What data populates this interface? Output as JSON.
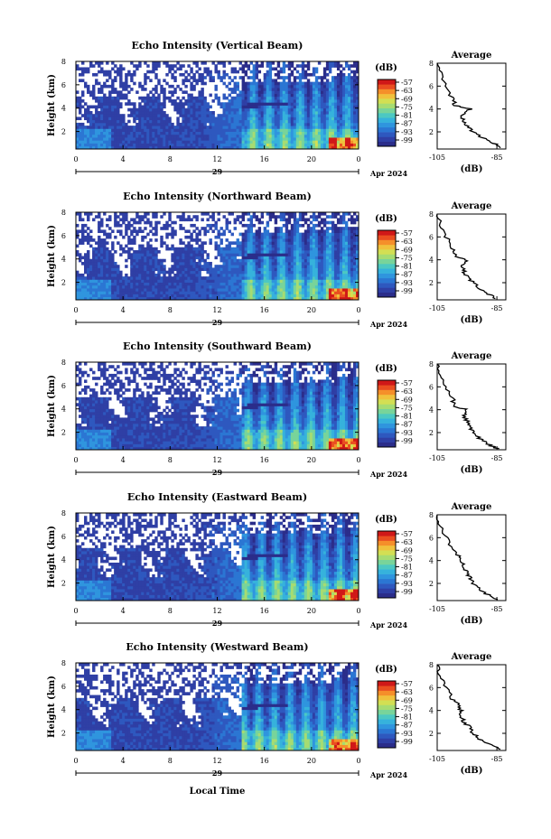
{
  "colors": {
    "map": [
      "#2b2d8a",
      "#2f3fa5",
      "#2e58bf",
      "#2b76d3",
      "#2f95de",
      "#36b2dc",
      "#4cc8c2",
      "#78d49a",
      "#a6dc72",
      "#d3df53",
      "#f0c13c",
      "#f58f2a",
      "#ea4e20",
      "#d01818"
    ],
    "background": "#ffffff",
    "axis": "#000000"
  },
  "colorbar": {
    "unit": "(dB)",
    "labels": [
      "-57",
      "-63",
      "-69",
      "-75",
      "-81",
      "-87",
      "-93",
      "-99"
    ]
  },
  "xaxis": {
    "ticks": [
      "0",
      "4",
      "8",
      "12",
      "16",
      "20",
      "0"
    ],
    "date_label": "29",
    "month_year": "Apr 2024",
    "label": "Local Time"
  },
  "chart_data": [
    {
      "type": "heatmap",
      "title": "Echo Intensity (Vertical Beam)",
      "ylabel": "Height (km)",
      "yticks": [
        "2",
        "4",
        "6",
        "8"
      ],
      "ylim": [
        0.5,
        8
      ],
      "xlim": [
        0,
        24
      ],
      "avg": {
        "title": "Average",
        "xlabel": "(dB)",
        "xticks": [
          "-105",
          "-85"
        ],
        "xlim": [
          -105,
          -82
        ],
        "yticks": [
          "2",
          "4",
          "6",
          "8"
        ],
        "profile": [
          [
            0.6,
            -83
          ],
          [
            1.0,
            -86
          ],
          [
            1.5,
            -90
          ],
          [
            2.0,
            -93
          ],
          [
            2.5,
            -95
          ],
          [
            3.0,
            -96
          ],
          [
            3.5,
            -97
          ],
          [
            4.0,
            -94
          ],
          [
            4.3,
            -99
          ],
          [
            5.0,
            -100
          ],
          [
            6.0,
            -102
          ],
          [
            7.0,
            -104
          ],
          [
            8.0,
            -105
          ]
        ]
      }
    },
    {
      "type": "heatmap",
      "title": "Echo Intensity (Northward Beam)",
      "ylabel": "Height (km)",
      "yticks": [
        "2",
        "4",
        "6",
        "8"
      ],
      "ylim": [
        0.5,
        8
      ],
      "xlim": [
        0,
        24
      ],
      "avg": {
        "title": "Average",
        "xlabel": "(dB)",
        "xticks": [
          "-105",
          "-85"
        ],
        "xlim": [
          -105,
          -82
        ],
        "yticks": [
          "2",
          "4",
          "6",
          "8"
        ],
        "profile": [
          [
            0.6,
            -85
          ],
          [
            1.0,
            -88
          ],
          [
            1.5,
            -91
          ],
          [
            2.0,
            -93
          ],
          [
            2.5,
            -95
          ],
          [
            3.0,
            -96
          ],
          [
            3.5,
            -97
          ],
          [
            4.0,
            -95
          ],
          [
            4.3,
            -99
          ],
          [
            5.0,
            -100
          ],
          [
            6.0,
            -102
          ],
          [
            7.0,
            -104
          ],
          [
            8.0,
            -105
          ]
        ]
      }
    },
    {
      "type": "heatmap",
      "title": "Echo Intensity (Southward Beam)",
      "ylabel": "Height (km)",
      "yticks": [
        "2",
        "4",
        "6",
        "8"
      ],
      "ylim": [
        0.5,
        8
      ],
      "xlim": [
        0,
        24
      ],
      "avg": {
        "title": "Average",
        "xlabel": "(dB)",
        "xticks": [
          "-105",
          "-85"
        ],
        "xlim": [
          -105,
          -82
        ],
        "yticks": [
          "2",
          "4",
          "6",
          "8"
        ],
        "profile": [
          [
            0.6,
            -85
          ],
          [
            1.0,
            -88
          ],
          [
            1.5,
            -91
          ],
          [
            2.0,
            -93
          ],
          [
            2.5,
            -94
          ],
          [
            3.0,
            -95
          ],
          [
            3.5,
            -96
          ],
          [
            4.0,
            -95
          ],
          [
            4.3,
            -99
          ],
          [
            5.0,
            -100
          ],
          [
            6.0,
            -102
          ],
          [
            7.0,
            -104
          ],
          [
            8.0,
            -105
          ]
        ]
      }
    },
    {
      "type": "heatmap",
      "title": "Echo Intensity (Eastward Beam)",
      "ylabel": "Height (km)",
      "yticks": [
        "2",
        "4",
        "6",
        "8"
      ],
      "ylim": [
        0.5,
        8
      ],
      "xlim": [
        0,
        24
      ],
      "avg": {
        "title": "Average",
        "xlabel": "(dB)",
        "xticks": [
          "-105",
          "-85"
        ],
        "xlim": [
          -105,
          -82
        ],
        "yticks": [
          "2",
          "4",
          "6",
          "8"
        ],
        "profile": [
          [
            0.6,
            -85
          ],
          [
            1.0,
            -88
          ],
          [
            1.5,
            -91
          ],
          [
            2.0,
            -93
          ],
          [
            2.5,
            -94
          ],
          [
            3.0,
            -95
          ],
          [
            3.5,
            -96
          ],
          [
            4.0,
            -97
          ],
          [
            4.5,
            -98
          ],
          [
            5.0,
            -100
          ],
          [
            6.0,
            -102
          ],
          [
            7.0,
            -104
          ],
          [
            8.0,
            -105
          ]
        ]
      }
    },
    {
      "type": "heatmap",
      "title": "Echo Intensity (Westward Beam)",
      "ylabel": "Height (km)",
      "yticks": [
        "2",
        "4",
        "6",
        "8"
      ],
      "ylim": [
        0.5,
        8
      ],
      "xlim": [
        0,
        24
      ],
      "avg": {
        "title": "Average",
        "xlabel": "(dB)",
        "xticks": [
          "-105",
          "-85"
        ],
        "xlim": [
          -105,
          -82
        ],
        "yticks": [
          "2",
          "4",
          "6",
          "8"
        ],
        "profile": [
          [
            0.6,
            -84
          ],
          [
            1.0,
            -87
          ],
          [
            1.5,
            -91
          ],
          [
            2.0,
            -93
          ],
          [
            2.5,
            -94
          ],
          [
            3.0,
            -96
          ],
          [
            3.5,
            -97
          ],
          [
            4.0,
            -97
          ],
          [
            4.5,
            -98
          ],
          [
            5.0,
            -100
          ],
          [
            6.0,
            -102
          ],
          [
            7.0,
            -104
          ],
          [
            8.0,
            -105
          ]
        ]
      }
    }
  ]
}
